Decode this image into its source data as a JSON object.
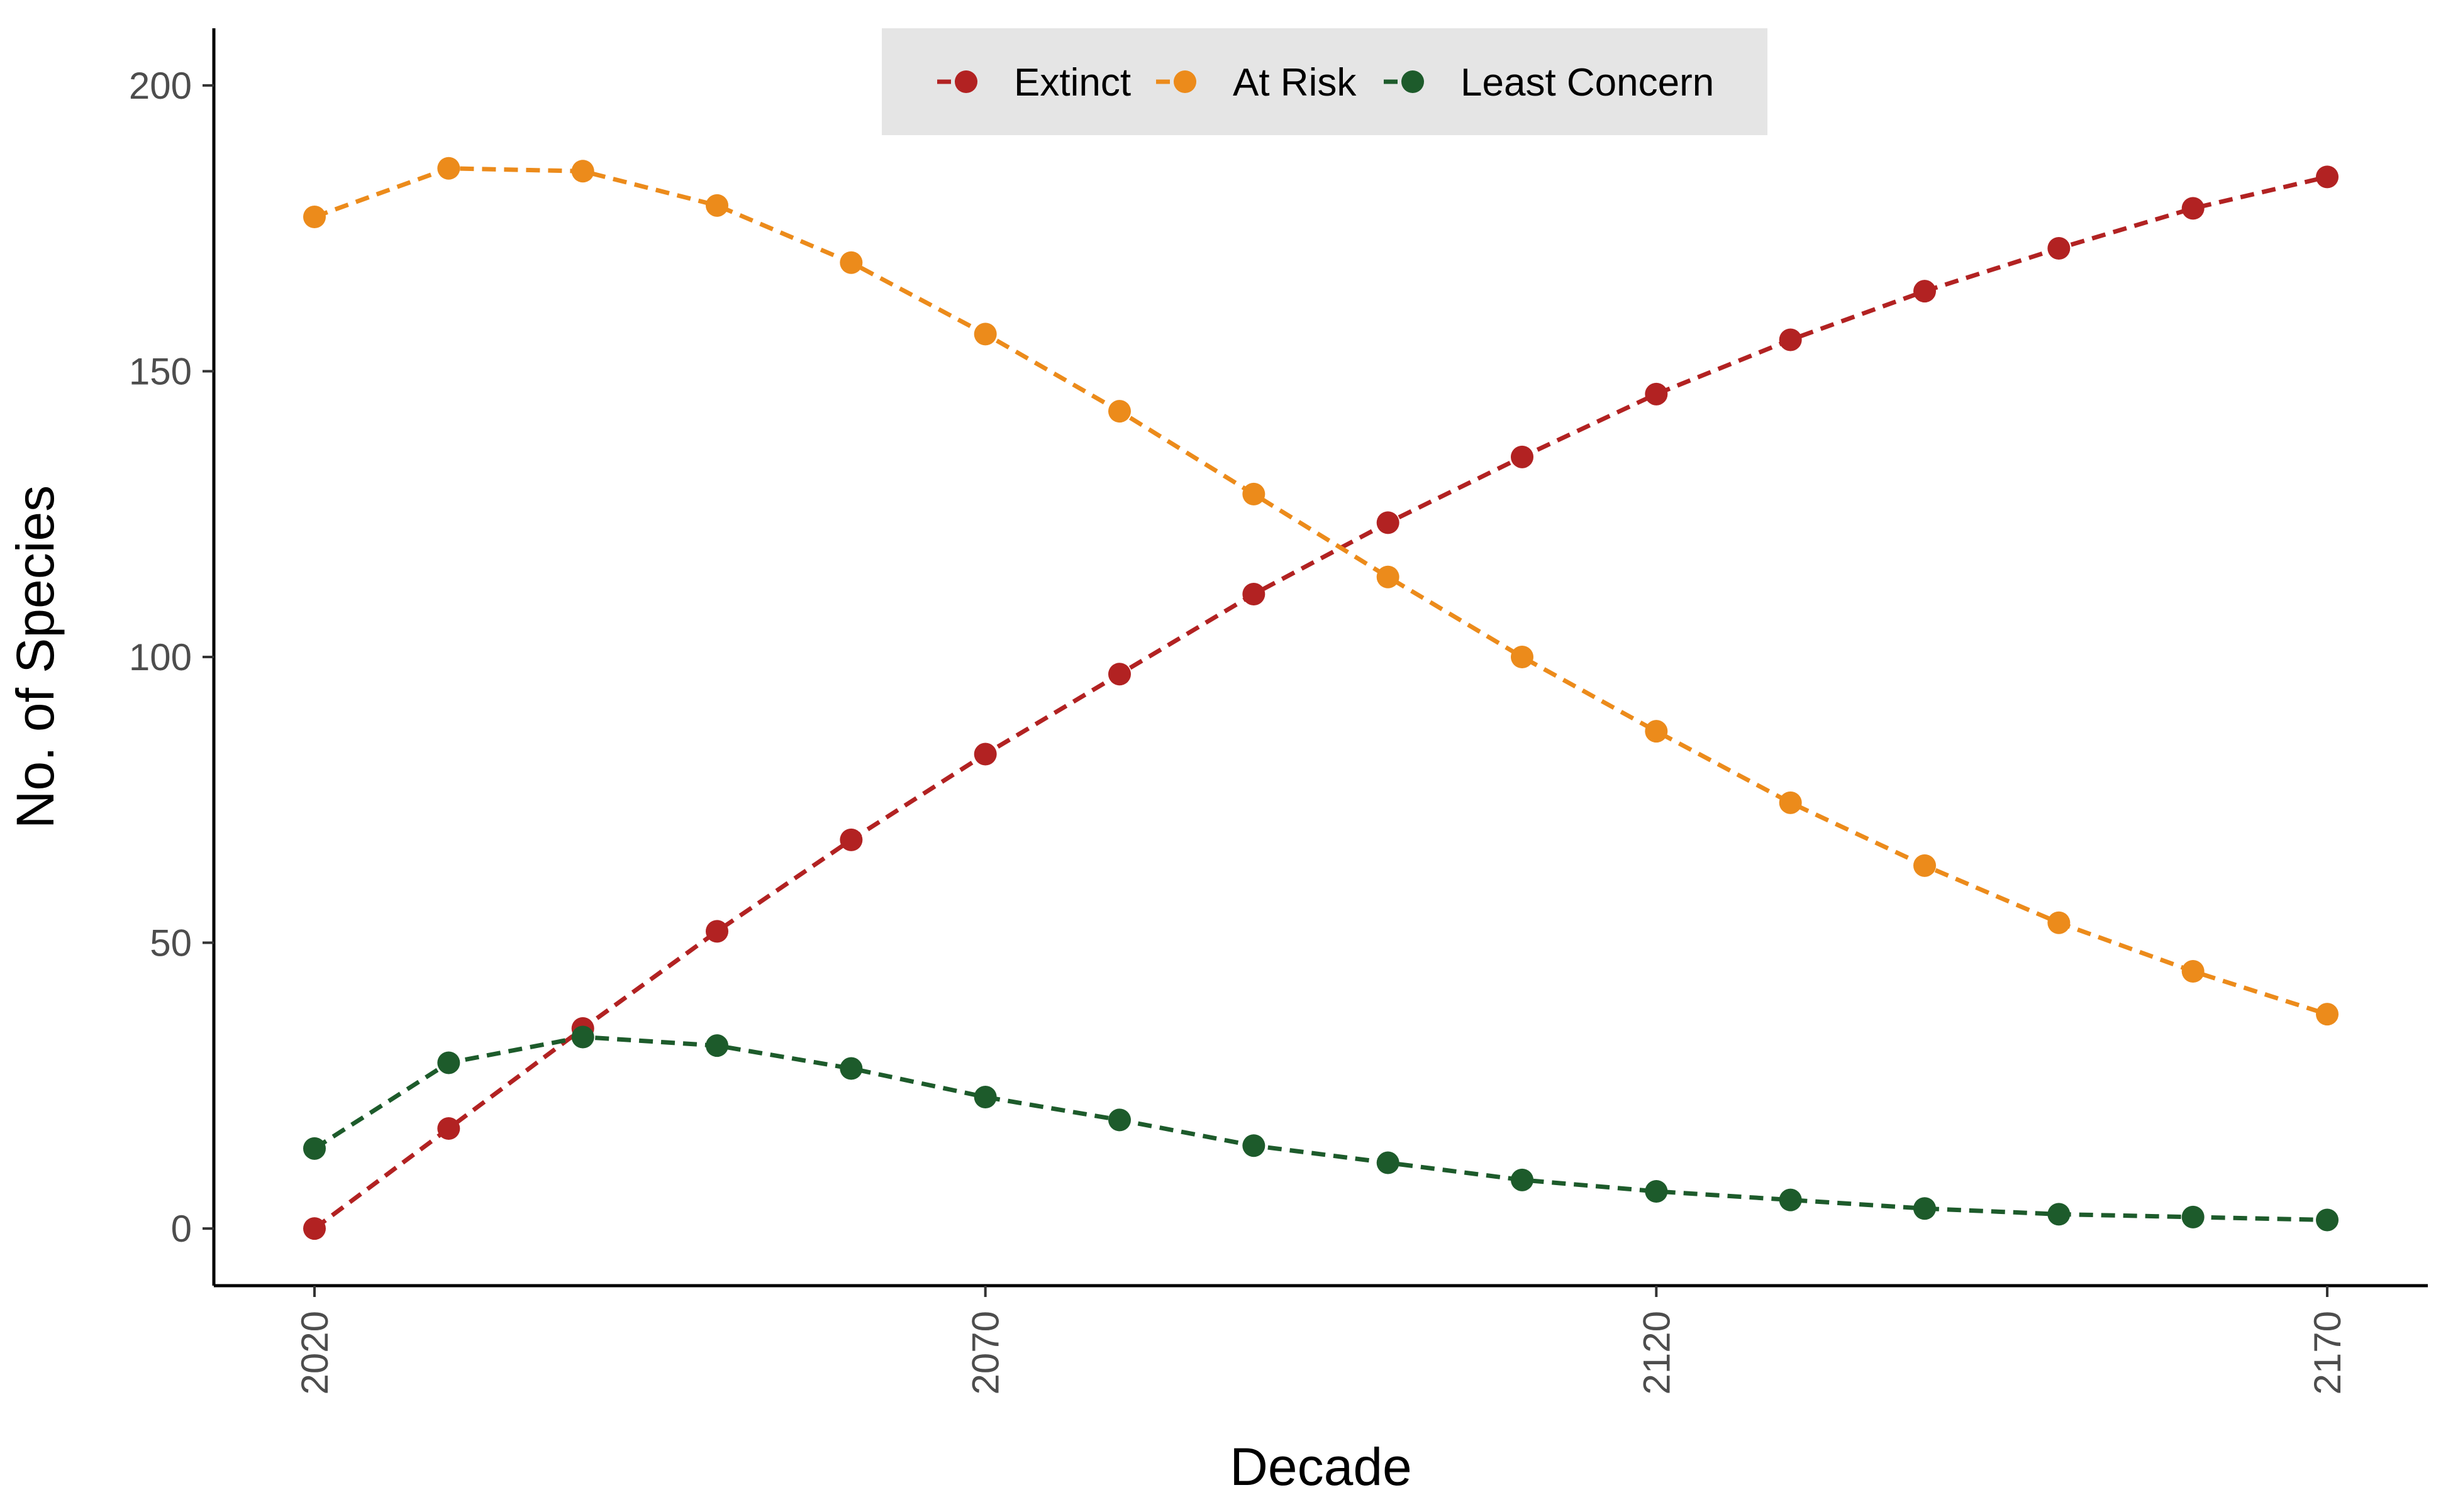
{
  "chart_data": {
    "type": "line",
    "xlabel": "Decade",
    "ylabel": "No. of Species",
    "x": [
      2020,
      2030,
      2040,
      2050,
      2060,
      2070,
      2080,
      2090,
      2100,
      2110,
      2120,
      2130,
      2140,
      2150,
      2160,
      2170
    ],
    "x_ticks": [
      "2020",
      "2070",
      "2120",
      "2170"
    ],
    "y_ticks": [
      "0",
      "50",
      "100",
      "150",
      "200"
    ],
    "xlim": [
      2012.5,
      2177.5
    ],
    "ylim": [
      -10,
      210
    ],
    "grid": false,
    "legend_position": "top",
    "line_style": "dashed",
    "series": [
      {
        "name": "Extinct",
        "color": "#b22222",
        "values": [
          0,
          17.5,
          35,
          52,
          68,
          83,
          97,
          111,
          123.5,
          135,
          146,
          155.5,
          164,
          171.5,
          178.5,
          184
        ]
      },
      {
        "name": "At Risk",
        "color": "#ec8b1b",
        "values": [
          177,
          185.5,
          185,
          179,
          169,
          156.5,
          143,
          128.5,
          114,
          100,
          87,
          74.5,
          63.5,
          53.5,
          45,
          37.5
        ]
      },
      {
        "name": "Least Concern",
        "color": "#1d5b2b",
        "values": [
          14,
          29,
          33.5,
          32,
          28,
          23,
          19,
          14.5,
          11.5,
          8.5,
          6.5,
          5,
          3.5,
          2.5,
          2,
          1.5
        ]
      }
    ]
  }
}
